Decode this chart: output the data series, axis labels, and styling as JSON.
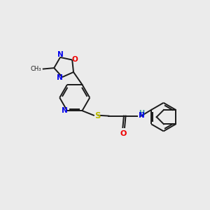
{
  "background_color": "#ebebeb",
  "bond_color": "#1a1a1a",
  "atom_colors": {
    "N": "#0000ee",
    "O": "#ee0000",
    "S": "#bbbb00",
    "H": "#339999",
    "C": "#1a1a1a"
  },
  "figsize": [
    3.0,
    3.0
  ],
  "dpi": 100,
  "xlim": [
    0,
    10
  ],
  "ylim": [
    0,
    10
  ]
}
